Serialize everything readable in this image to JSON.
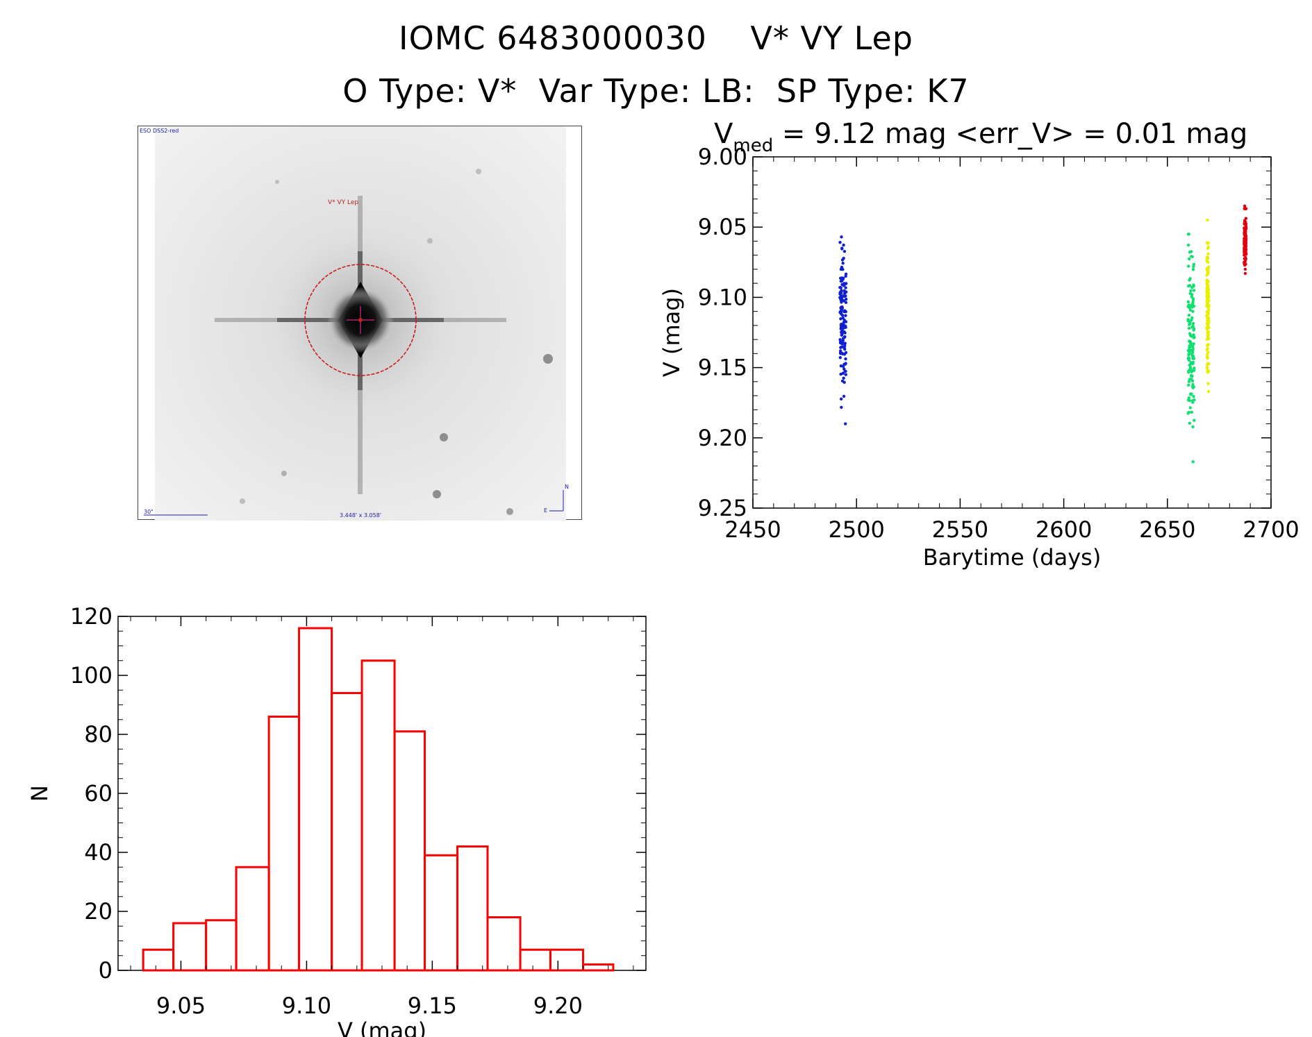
{
  "titles": {
    "line1": "IOMC 6483000030    V* VY Lep",
    "line2": "O Type: V*  Var Type: LB:  SP Type: K7"
  },
  "finder_chart": {
    "survey_label": "ESO DSS2-red",
    "target_label": "V* VY Lep",
    "scale_label": "30\"",
    "fov_label": "3.448' x 3.058'",
    "compass_n": "N",
    "compass_e": "E"
  },
  "lightcurve_header": {
    "vmed_symbol": "V",
    "vmed_sub": "med",
    "vmed_text": " = 9.12 mag <err_V> = 0.01 mag"
  },
  "colors": {
    "blue": "#1020d0",
    "green": "#10e070",
    "yellow": "#e8f000",
    "red": "#e00010",
    "hist": "#ff0000"
  },
  "chart_data": [
    {
      "type": "scatter",
      "xlabel": "Barytime (days)",
      "ylabel": "V (mag)",
      "xlim": [
        2450,
        2700
      ],
      "ylim": [
        9.25,
        9.0
      ],
      "y_inverted": true,
      "xticks": [
        "2450",
        "2500",
        "2550",
        "2600",
        "2650",
        "2700"
      ],
      "yticks": [
        "9.00",
        "9.05",
        "9.10",
        "9.15",
        "9.20",
        "9.25"
      ],
      "series": [
        {
          "color": "blue",
          "x": [
            2492,
            2495
          ],
          "y_range": [
            9.057,
            9.19
          ],
          "y_median": 9.12
        },
        {
          "color": "green",
          "x": [
            2660,
            2663
          ],
          "y_range": [
            9.055,
            9.217
          ],
          "y_median": 9.13
        },
        {
          "color": "yellow",
          "x": [
            2669,
            2670
          ],
          "y_range": [
            9.045,
            9.167
          ],
          "y_median": 9.11
        },
        {
          "color": "red",
          "x": [
            2687,
            2688
          ],
          "y_range": [
            9.035,
            9.083
          ],
          "y_median": 9.06
        }
      ]
    },
    {
      "type": "bar",
      "xlabel": "V (mag)",
      "ylabel": "N",
      "xlim": [
        9.025,
        9.235
      ],
      "ylim": [
        0,
        120
      ],
      "xticks": [
        "9.05",
        "9.10",
        "9.15",
        "9.20"
      ],
      "yticks": [
        "0",
        "20",
        "40",
        "60",
        "80",
        "100",
        "120"
      ],
      "bin_edges": [
        9.035,
        9.047,
        9.06,
        9.072,
        9.085,
        9.097,
        9.11,
        9.122,
        9.135,
        9.147,
        9.16,
        9.172,
        9.185,
        9.197,
        9.21,
        9.222
      ],
      "values": [
        7,
        16,
        17,
        35,
        86,
        116,
        94,
        105,
        81,
        39,
        42,
        18,
        7,
        7,
        2
      ]
    }
  ]
}
